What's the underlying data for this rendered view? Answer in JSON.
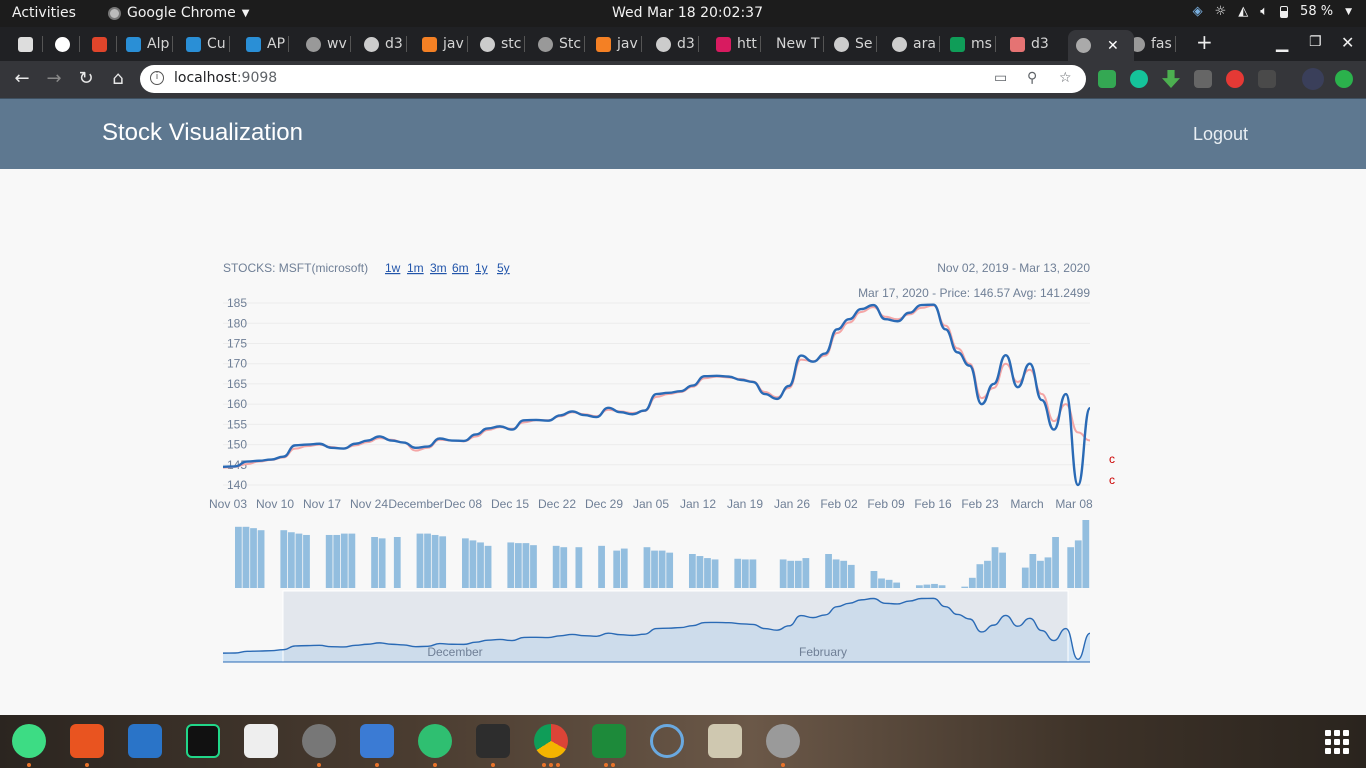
{
  "system": {
    "activities": "Activities",
    "app_menu": "Google Chrome",
    "clock": "Wed Mar 18  20:02:37",
    "battery": "58 %"
  },
  "browser": {
    "tabs": [
      {
        "label": "",
        "icon": "apps-icon"
      },
      {
        "label": "",
        "icon": "google-icon"
      },
      {
        "label": "",
        "icon": "quora-icon"
      },
      {
        "label": "Alp",
        "icon": "alpha-icon"
      },
      {
        "label": "Cu",
        "icon": "alpha-icon"
      },
      {
        "label": "AP",
        "icon": "alpha-icon"
      },
      {
        "label": "wv",
        "icon": "globe-icon"
      },
      {
        "label": "d3",
        "icon": "github-icon"
      },
      {
        "label": "jav",
        "icon": "stackoverflow-icon"
      },
      {
        "label": "stc",
        "icon": "github-icon"
      },
      {
        "label": "Stc",
        "icon": "globe-icon"
      },
      {
        "label": "jav",
        "icon": "stackoverflow-icon"
      },
      {
        "label": "d3",
        "icon": "github-icon"
      },
      {
        "label": "htt",
        "icon": "pink-icon"
      },
      {
        "label": "New T",
        "icon": ""
      },
      {
        "label": "Se",
        "icon": "github-icon"
      },
      {
        "label": "ara",
        "icon": "github-icon"
      },
      {
        "label": "ms",
        "icon": "sheets-icon"
      },
      {
        "label": "d3",
        "icon": "cube-icon"
      },
      {
        "label": "fas",
        "icon": "globe-icon"
      }
    ],
    "close_glyph": "✕",
    "new_tab_glyph": "+",
    "url_host": "localhost",
    "url_port": ":9098"
  },
  "app": {
    "brand": "Stock Visualization",
    "logout": "Logout"
  },
  "chart_header": {
    "stock_label": "STOCKS: MSFT(microsoft)",
    "timeframes": [
      "1w",
      "1m",
      "3m",
      "6m",
      "1y",
      "5y"
    ],
    "date_range": "Nov 02, 2019 - Mar 13, 2020",
    "hover_info": "Mar 17, 2020 - Price: 146.57 Avg: 141.2499",
    "side_marks": [
      "c",
      "c"
    ]
  },
  "chart_data": {
    "type": "line",
    "x_ticks": [
      "Nov 03",
      "Nov 10",
      "Nov 17",
      "Nov 24",
      "December",
      "Dec 08",
      "Dec 15",
      "Dec 22",
      "Dec 29",
      "Jan 05",
      "Jan 12",
      "Jan 19",
      "Jan 26",
      "Feb 02",
      "Feb 09",
      "Feb 16",
      "Feb 23",
      "March",
      "Mar 08"
    ],
    "y_ticks": [
      140,
      145,
      150,
      155,
      160,
      165,
      170,
      175,
      180,
      185
    ],
    "ylim": [
      140,
      186
    ],
    "series": [
      {
        "color": "#2a6ab5",
        "values": [
          144.5,
          144.6,
          145.8,
          146,
          146.3,
          147,
          149.8,
          150,
          150.2,
          149.2,
          149,
          150.2,
          151,
          152,
          151,
          150.5,
          149.2,
          149.5,
          151.5,
          151,
          150.9,
          152.5,
          154,
          154.5,
          153.7,
          156,
          156.1,
          155.9,
          157.2,
          158.2,
          157.3,
          156.8,
          159.1,
          158,
          157.5,
          158.4,
          162.5,
          162.8,
          163.2,
          164.6,
          166.9,
          167,
          166.8,
          166,
          165.5,
          162.5,
          161.3,
          164.5,
          172,
          170.5,
          172.5,
          178.5,
          181,
          183.5,
          184.5,
          181,
          180.5,
          182.6,
          184.5,
          184.6,
          178.5,
          172.8,
          169.5,
          160,
          165,
          172.1,
          164.2,
          170,
          161,
          153.7,
          162.5,
          140,
          159
        ]
      },
      {
        "color": "#f4a6a6",
        "values": [
          144.3,
          144.5,
          145.2,
          145.8,
          146.2,
          146.8,
          149,
          149.6,
          150,
          149.4,
          149,
          149.8,
          150.6,
          151.6,
          151.2,
          150.5,
          148.5,
          149.2,
          151.2,
          151,
          150.8,
          152,
          153.6,
          154.3,
          153.9,
          155.5,
          156,
          156,
          157,
          158,
          157.5,
          157,
          158.6,
          158.2,
          157.8,
          158.3,
          161.8,
          162.5,
          163,
          164.3,
          166.4,
          166.8,
          166.6,
          166.2,
          165.6,
          163,
          161.7,
          164,
          171,
          170.6,
          172,
          177.6,
          180.2,
          182.8,
          184,
          181.6,
          181,
          182.2,
          183.8,
          184.4,
          179.4,
          173.8,
          170,
          161.5,
          164,
          170,
          165.5,
          168.5,
          162.5,
          155.8,
          160,
          153,
          151
        ]
      }
    ],
    "volume_series_relative": [
      0.9,
      0.9,
      0.88,
      0.85,
      0,
      0,
      0.85,
      0.82,
      0.8,
      0.78,
      0,
      0,
      0.78,
      0.78,
      0.8,
      0.8,
      0,
      0,
      0.75,
      0.73,
      0,
      0.75,
      0,
      0,
      0.8,
      0.8,
      0.78,
      0.76,
      0,
      0,
      0.73,
      0.7,
      0.67,
      0.62,
      0,
      0,
      0.67,
      0.66,
      0.66,
      0.63,
      0,
      0,
      0.62,
      0.6,
      0,
      0.6,
      0,
      0,
      0.62,
      0,
      0.55,
      0.58,
      0,
      0,
      0.6,
      0.55,
      0.55,
      0.52,
      0,
      0,
      0.5,
      0.47,
      0.44,
      0.42,
      0,
      0,
      0.43,
      0.42,
      0.42,
      0,
      0,
      0,
      0.42,
      0.4,
      0.4,
      0.44,
      0,
      0,
      0.5,
      0.42,
      0.4,
      0.34,
      0,
      0,
      0.25,
      0.14,
      0.12,
      0.08,
      0,
      0,
      0.04,
      0.05,
      0.06,
      0.04,
      0,
      0,
      0.02,
      0.15,
      0.35,
      0.4,
      0.6,
      0.52,
      0,
      0,
      0.3,
      0.5,
      0.4,
      0.45,
      0.75,
      0,
      0.6,
      0.7,
      1.0
    ],
    "brush": {
      "labels": [
        "December",
        "February"
      ],
      "selected_range": [
        "Nov 10",
        "Mar 09"
      ]
    }
  },
  "dock_apps": [
    "android-studio-icon",
    "software-center-icon",
    "libreoffice-writer-icon",
    "pycharm-icon",
    "search-icon",
    "settings-icon",
    "notes-icon",
    "atom-icon",
    "terminal-icon",
    "chrome-icon",
    "libreoffice-calc-icon",
    "shutter-icon",
    "files-icon",
    "disk-icon"
  ]
}
